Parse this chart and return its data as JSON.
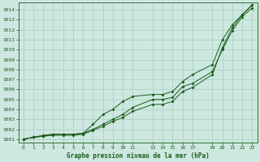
{
  "background_color": "#cde8e0",
  "plot_bg": "#cde8e0",
  "grid_color": "#a8ccc0",
  "line_color": "#1a5c1a",
  "title": "Graphe pression niveau de la mer (hPa)",
  "xlim": [
    -0.5,
    23.5
  ],
  "ylim": [
    1000.7,
    1014.7
  ],
  "yticks": [
    1001,
    1002,
    1003,
    1004,
    1005,
    1006,
    1007,
    1008,
    1009,
    1010,
    1011,
    1012,
    1013,
    1014
  ],
  "xticks": [
    0,
    1,
    2,
    3,
    4,
    5,
    6,
    7,
    8,
    9,
    10,
    11,
    13,
    14,
    15,
    16,
    17,
    19,
    20,
    21,
    22,
    23
  ],
  "line1_x": [
    0,
    1,
    2,
    3,
    4,
    5,
    6,
    7,
    8,
    9,
    10,
    11,
    13,
    14,
    15,
    16,
    17,
    19,
    20,
    21,
    22,
    23
  ],
  "line1_y": [
    1001.0,
    1001.2,
    1001.4,
    1001.5,
    1001.5,
    1001.5,
    1001.6,
    1002.0,
    1002.5,
    1003.0,
    1003.5,
    1004.2,
    1005.0,
    1005.0,
    1005.2,
    1006.3,
    1006.6,
    1007.8,
    1010.0,
    1011.9,
    1013.3,
    1014.2
  ],
  "line2_x": [
    0,
    1,
    2,
    3,
    4,
    5,
    6,
    7,
    8,
    9,
    10,
    11,
    13,
    14,
    15,
    16,
    17,
    19,
    20,
    21,
    22,
    23
  ],
  "line2_y": [
    1001.0,
    1001.2,
    1001.3,
    1001.4,
    1001.4,
    1001.4,
    1001.5,
    1001.9,
    1002.3,
    1002.8,
    1003.2,
    1003.8,
    1004.5,
    1004.5,
    1004.8,
    1005.8,
    1006.2,
    1007.5,
    1010.2,
    1012.2,
    1013.5,
    1014.5
  ],
  "line3_x": [
    0,
    1,
    2,
    3,
    4,
    5,
    6,
    7,
    8,
    9,
    10,
    11,
    13,
    14,
    15,
    16,
    17,
    19,
    20,
    21,
    22,
    23
  ],
  "line3_y": [
    1001.0,
    1001.2,
    1001.3,
    1001.5,
    1001.5,
    1001.5,
    1001.6,
    1002.5,
    1003.5,
    1004.0,
    1004.8,
    1005.3,
    1005.5,
    1005.5,
    1005.8,
    1006.8,
    1007.5,
    1008.5,
    1011.0,
    1012.5,
    1013.5,
    1014.5
  ]
}
